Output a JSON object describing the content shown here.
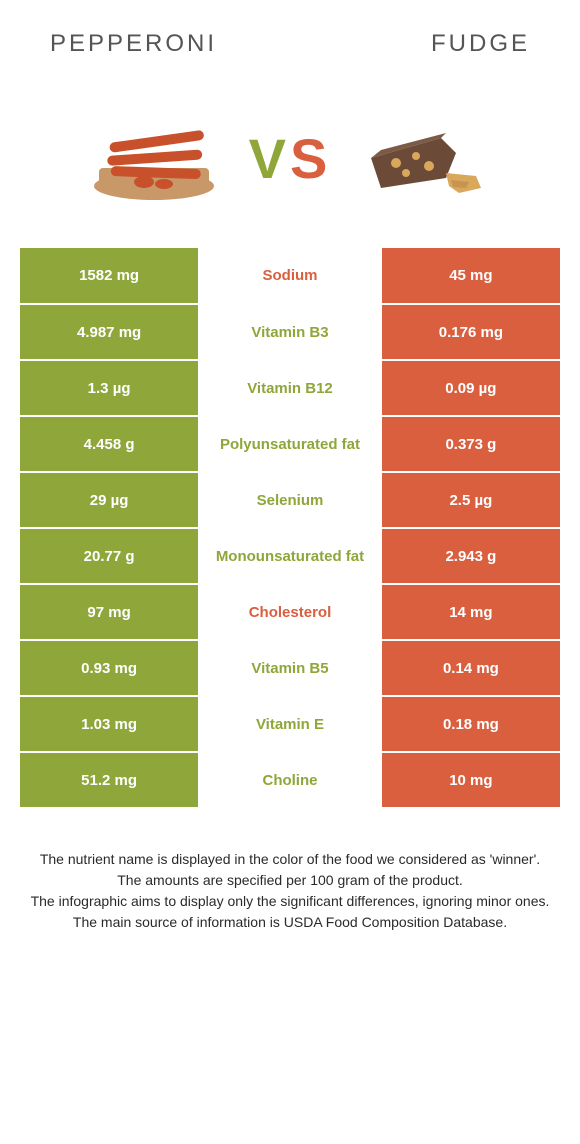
{
  "header": {
    "left": "PEPPERONI",
    "right": "FUDGE"
  },
  "vs": {
    "v": "V",
    "s": "S"
  },
  "colors": {
    "green": "#8fa63a",
    "orange": "#d95f3f",
    "white": "#ffffff",
    "text": "#2a2a2a"
  },
  "table": {
    "rows": [
      {
        "left": "1582 mg",
        "nutrient": "Sodium",
        "right": "45 mg",
        "winner": "orange"
      },
      {
        "left": "4.987 mg",
        "nutrient": "Vitamin B3",
        "right": "0.176 mg",
        "winner": "green"
      },
      {
        "left": "1.3 µg",
        "nutrient": "Vitamin B12",
        "right": "0.09 µg",
        "winner": "green"
      },
      {
        "left": "4.458 g",
        "nutrient": "Polyunsaturated fat",
        "right": "0.373 g",
        "winner": "green"
      },
      {
        "left": "29 µg",
        "nutrient": "Selenium",
        "right": "2.5 µg",
        "winner": "green"
      },
      {
        "left": "20.77 g",
        "nutrient": "Monounsaturated fat",
        "right": "2.943 g",
        "winner": "green"
      },
      {
        "left": "97 mg",
        "nutrient": "Cholesterol",
        "right": "14 mg",
        "winner": "orange"
      },
      {
        "left": "0.93 mg",
        "nutrient": "Vitamin B5",
        "right": "0.14 mg",
        "winner": "green"
      },
      {
        "left": "1.03 mg",
        "nutrient": "Vitamin E",
        "right": "0.18 mg",
        "winner": "green"
      },
      {
        "left": "51.2 mg",
        "nutrient": "Choline",
        "right": "10 mg",
        "winner": "green"
      }
    ]
  },
  "footer": {
    "line1": "The nutrient name is displayed in the color of the food we considered as 'winner'.",
    "line2": "The amounts are specified per 100 gram of the product.",
    "line3": "The infographic aims to display only the significant differences, ignoring minor ones.",
    "line4": "The main source of information is USDA Food Composition Database."
  }
}
